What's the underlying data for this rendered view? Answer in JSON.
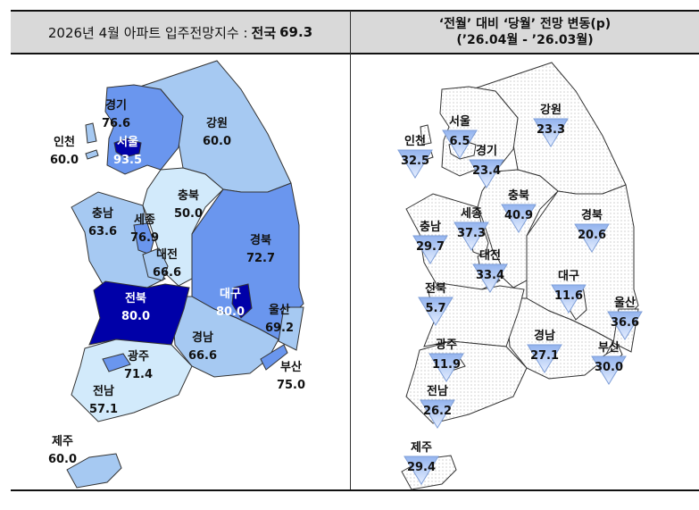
{
  "header": {
    "left_title": "2026년 4월 아파트 입주전망지수 :",
    "left_national_label": "전국",
    "left_national_value": "69.3",
    "right_title_line1": "‘전월’ 대비 ‘당월’ 전망 변동(p)",
    "right_title_line2": "(’26.04월  -  ’26.03월)"
  },
  "colors": {
    "level_80_plus": "#0000a8",
    "level_70_80": "#6a96ee",
    "level_60_70": "#a6c9f2",
    "level_50_60": "#d2eafb",
    "triangle_fill": "#a9c4f0",
    "change_direction": "decrease"
  },
  "left_map": {
    "regions": [
      {
        "name": "경기",
        "value": "76.6"
      },
      {
        "name": "인천",
        "value": "60.0"
      },
      {
        "name": "서울",
        "value": "93.5"
      },
      {
        "name": "강원",
        "value": "60.0"
      },
      {
        "name": "충북",
        "value": "50.0"
      },
      {
        "name": "충남",
        "value": "63.6"
      },
      {
        "name": "세종",
        "value": "76.9"
      },
      {
        "name": "대전",
        "value": "66.6"
      },
      {
        "name": "경북",
        "value": "72.7"
      },
      {
        "name": "전북",
        "value": "80.0"
      },
      {
        "name": "대구",
        "value": "80.0"
      },
      {
        "name": "울산",
        "value": "69.2"
      },
      {
        "name": "광주",
        "value": "71.4"
      },
      {
        "name": "경남",
        "value": "66.6"
      },
      {
        "name": "부산",
        "value": "75.0"
      },
      {
        "name": "전남",
        "value": "57.1"
      },
      {
        "name": "제주",
        "value": "60.0"
      }
    ]
  },
  "right_map": {
    "regions": [
      {
        "name": "서울",
        "value": "6.5"
      },
      {
        "name": "인천",
        "value": "32.5"
      },
      {
        "name": "경기",
        "value": "23.4"
      },
      {
        "name": "강원",
        "value": "23.3"
      },
      {
        "name": "충북",
        "value": "40.9"
      },
      {
        "name": "세종",
        "value": "37.3"
      },
      {
        "name": "충남",
        "value": "29.7"
      },
      {
        "name": "경북",
        "value": "20.6"
      },
      {
        "name": "대전",
        "value": "33.4"
      },
      {
        "name": "대구",
        "value": "11.6"
      },
      {
        "name": "전북",
        "value": "5.7"
      },
      {
        "name": "울산",
        "value": "36.6"
      },
      {
        "name": "경남",
        "value": "27.1"
      },
      {
        "name": "부산",
        "value": "30.0"
      },
      {
        "name": "광주",
        "value": "11.9"
      },
      {
        "name": "전남",
        "value": "26.2"
      },
      {
        "name": "제주",
        "value": "29.4"
      }
    ]
  }
}
